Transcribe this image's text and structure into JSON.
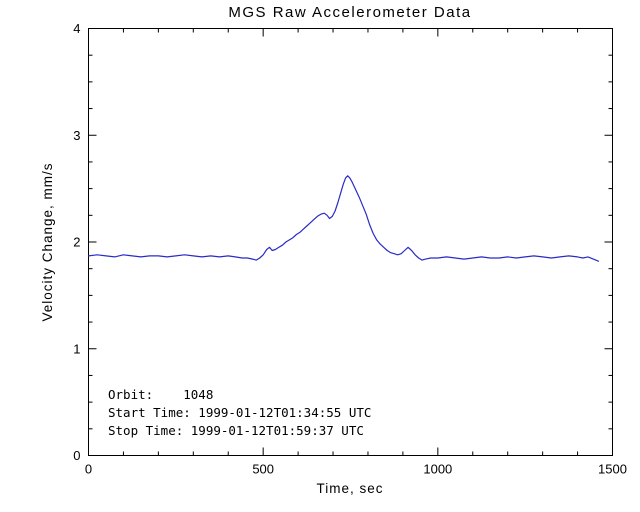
{
  "colors": {
    "background": "#ffffff",
    "axis": "#000000",
    "line": "#2a2ac8"
  },
  "chart_data": {
    "type": "line",
    "title": "MGS Raw Accelerometer Data",
    "xlabel": "Time, sec",
    "ylabel": "Velocity Change, mm/s",
    "xlim": [
      0,
      1500
    ],
    "ylim": [
      0,
      4
    ],
    "x_ticks": [
      0,
      500,
      1000,
      1500
    ],
    "y_ticks": [
      0,
      1,
      2,
      3,
      4
    ],
    "x_minor_step": 100,
    "y_minor_step": 0.25,
    "grid": false,
    "legend": false,
    "annotations": [
      "Orbit:    1048",
      "Start Time: 1999-01-12T01:34:55 UTC",
      "Stop Time: 1999-01-12T01:59:37 UTC"
    ],
    "series": [
      {
        "name": "velocity-change",
        "color": "#2a2ac8",
        "points": [
          [
            0,
            1.87
          ],
          [
            25,
            1.88
          ],
          [
            50,
            1.87
          ],
          [
            75,
            1.86
          ],
          [
            100,
            1.88
          ],
          [
            125,
            1.87
          ],
          [
            150,
            1.86
          ],
          [
            175,
            1.87
          ],
          [
            200,
            1.87
          ],
          [
            225,
            1.86
          ],
          [
            250,
            1.87
          ],
          [
            275,
            1.88
          ],
          [
            300,
            1.87
          ],
          [
            325,
            1.86
          ],
          [
            350,
            1.87
          ],
          [
            375,
            1.86
          ],
          [
            400,
            1.87
          ],
          [
            420,
            1.86
          ],
          [
            440,
            1.85
          ],
          [
            455,
            1.85
          ],
          [
            470,
            1.84
          ],
          [
            480,
            1.83
          ],
          [
            490,
            1.85
          ],
          [
            500,
            1.88
          ],
          [
            510,
            1.93
          ],
          [
            518,
            1.95
          ],
          [
            526,
            1.92
          ],
          [
            535,
            1.93
          ],
          [
            545,
            1.95
          ],
          [
            555,
            1.97
          ],
          [
            565,
            2.0
          ],
          [
            575,
            2.02
          ],
          [
            585,
            2.04
          ],
          [
            595,
            2.07
          ],
          [
            605,
            2.09
          ],
          [
            615,
            2.12
          ],
          [
            625,
            2.15
          ],
          [
            635,
            2.18
          ],
          [
            645,
            2.21
          ],
          [
            655,
            2.24
          ],
          [
            665,
            2.26
          ],
          [
            675,
            2.27
          ],
          [
            683,
            2.25
          ],
          [
            690,
            2.22
          ],
          [
            698,
            2.24
          ],
          [
            706,
            2.29
          ],
          [
            714,
            2.37
          ],
          [
            722,
            2.46
          ],
          [
            729,
            2.54
          ],
          [
            736,
            2.6
          ],
          [
            742,
            2.62
          ],
          [
            748,
            2.6
          ],
          [
            755,
            2.56
          ],
          [
            765,
            2.49
          ],
          [
            775,
            2.42
          ],
          [
            785,
            2.34
          ],
          [
            795,
            2.26
          ],
          [
            805,
            2.16
          ],
          [
            815,
            2.08
          ],
          [
            825,
            2.02
          ],
          [
            835,
            1.98
          ],
          [
            845,
            1.95
          ],
          [
            855,
            1.92
          ],
          [
            865,
            1.9
          ],
          [
            875,
            1.89
          ],
          [
            885,
            1.88
          ],
          [
            895,
            1.89
          ],
          [
            905,
            1.92
          ],
          [
            915,
            1.95
          ],
          [
            925,
            1.92
          ],
          [
            935,
            1.88
          ],
          [
            945,
            1.85
          ],
          [
            955,
            1.83
          ],
          [
            965,
            1.84
          ],
          [
            980,
            1.85
          ],
          [
            1000,
            1.85
          ],
          [
            1025,
            1.86
          ],
          [
            1050,
            1.85
          ],
          [
            1075,
            1.84
          ],
          [
            1100,
            1.85
          ],
          [
            1125,
            1.86
          ],
          [
            1150,
            1.85
          ],
          [
            1175,
            1.85
          ],
          [
            1200,
            1.86
          ],
          [
            1225,
            1.85
          ],
          [
            1250,
            1.86
          ],
          [
            1275,
            1.87
          ],
          [
            1300,
            1.86
          ],
          [
            1325,
            1.85
          ],
          [
            1350,
            1.86
          ],
          [
            1375,
            1.87
          ],
          [
            1400,
            1.86
          ],
          [
            1415,
            1.85
          ],
          [
            1430,
            1.86
          ],
          [
            1445,
            1.84
          ],
          [
            1460,
            1.82
          ]
        ]
      }
    ]
  }
}
